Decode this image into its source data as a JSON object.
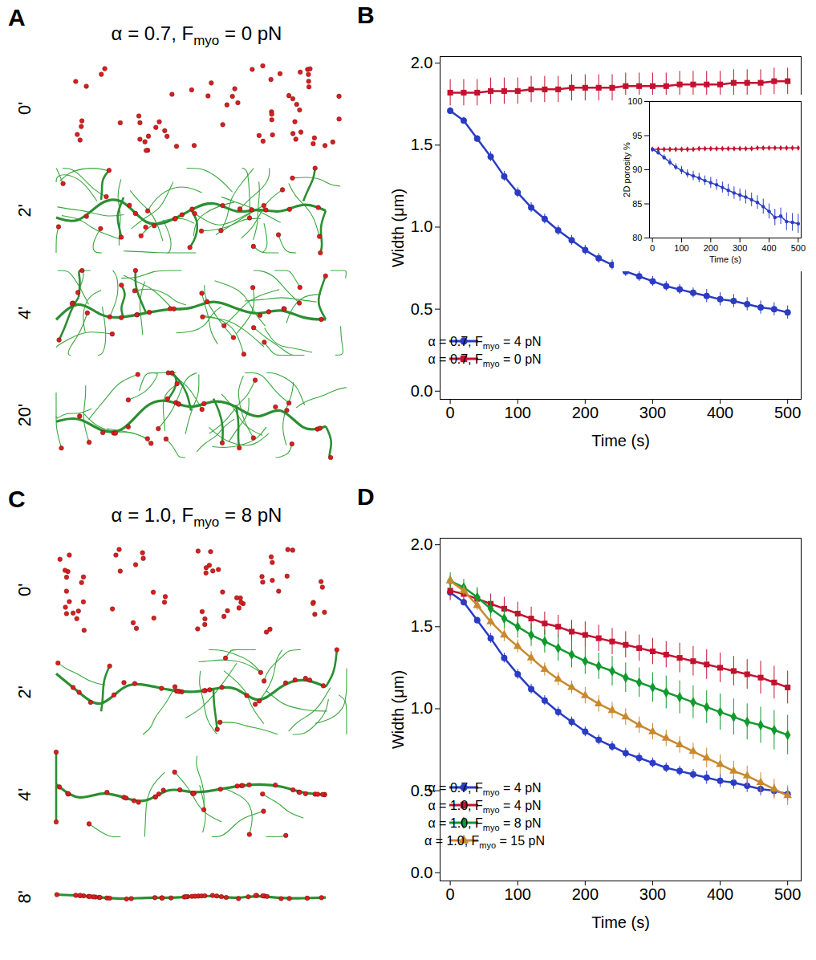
{
  "snapshots": [
    {
      "panel": "A",
      "title": "α = 0.7, Fmyo = 0 pN",
      "frames": [
        "0'",
        "2'",
        "4'",
        "20'"
      ]
    },
    {
      "panel": "C",
      "title": "α = 1.0, Fmyo = 8 pN",
      "frames": [
        "0'",
        "2'",
        "4'",
        "8'"
      ]
    }
  ],
  "chart_data": [
    {
      "panel": "B",
      "type": "line",
      "xlabel": "Time (s)",
      "ylabel": "Width (μm)",
      "x": [
        0,
        20,
        40,
        60,
        80,
        100,
        120,
        140,
        160,
        180,
        200,
        220,
        240,
        260,
        280,
        300,
        320,
        340,
        360,
        380,
        400,
        420,
        440,
        460,
        480,
        500
      ],
      "xlim": [
        -15,
        520
      ],
      "xticks": [
        0,
        100,
        200,
        300,
        400,
        500
      ],
      "ylim": [
        -0.05,
        2.04
      ],
      "yticks": [
        {
          "value": 0,
          "label": "0.0"
        },
        0.5,
        {
          "value": 1,
          "label": "1.0"
        },
        1.5,
        {
          "value": 2,
          "label": "2.0"
        }
      ],
      "legend": "lower left",
      "series": [
        {
          "name": "α = 0.7, Fmyo = 4 pN",
          "color": "#2a3cc4",
          "marker": "circle",
          "values": [
            1.71,
            1.65,
            1.54,
            1.43,
            1.31,
            1.21,
            1.12,
            1.05,
            0.98,
            0.92,
            0.86,
            0.81,
            0.77,
            0.73,
            0.7,
            0.67,
            0.64,
            0.62,
            0.6,
            0.58,
            0.56,
            0.55,
            0.53,
            0.51,
            0.5,
            0.48
          ],
          "errors": [
            0.02,
            0.02,
            0.02,
            0.03,
            0.03,
            0.03,
            0.03,
            0.03,
            0.03,
            0.03,
            0.03,
            0.03,
            0.03,
            0.03,
            0.03,
            0.03,
            0.03,
            0.03,
            0.03,
            0.04,
            0.04,
            0.04,
            0.04,
            0.04,
            0.04,
            0.04
          ]
        },
        {
          "name": "α = 0.7, Fmyo = 0 pN",
          "color": "#c4112f",
          "marker": "square",
          "values": [
            1.82,
            1.82,
            1.82,
            1.83,
            1.83,
            1.83,
            1.84,
            1.84,
            1.84,
            1.85,
            1.85,
            1.85,
            1.85,
            1.86,
            1.86,
            1.86,
            1.86,
            1.87,
            1.87,
            1.87,
            1.87,
            1.88,
            1.88,
            1.88,
            1.89,
            1.89
          ],
          "errors": [
            0.08,
            0.08,
            0.08,
            0.08,
            0.08,
            0.08,
            0.08,
            0.08,
            0.08,
            0.08,
            0.08,
            0.08,
            0.08,
            0.08,
            0.08,
            0.08,
            0.08,
            0.08,
            0.08,
            0.08,
            0.08,
            0.08,
            0.08,
            0.08,
            0.08,
            0.08
          ]
        }
      ],
      "inset": {
        "type": "line",
        "xlabel": "Time (s)",
        "ylabel": "2D porosity %",
        "x": [
          0,
          20,
          40,
          60,
          80,
          100,
          120,
          140,
          160,
          180,
          200,
          220,
          240,
          260,
          280,
          300,
          320,
          340,
          360,
          380,
          400,
          420,
          440,
          460,
          480,
          500
        ],
        "xlim": [
          -10,
          510
        ],
        "xticks": [
          0,
          100,
          200,
          300,
          400,
          500
        ],
        "ylim": [
          80,
          100
        ],
        "yticks": [
          80,
          85,
          90,
          95,
          100
        ],
        "series": [
          {
            "color": "#c4112f",
            "marker": "diamond",
            "values": [
              93.0,
              93.0,
              93.0,
              93.0,
              93.0,
              93.0,
              93.0,
              93.0,
              93.1,
              93.1,
              93.1,
              93.1,
              93.1,
              93.1,
              93.1,
              93.1,
              93.1,
              93.1,
              93.2,
              93.2,
              93.2,
              93.2,
              93.2,
              93.2,
              93.2,
              93.2
            ],
            "errors": [
              0.1,
              0.1,
              0.1,
              0.1,
              0.1,
              0.1,
              0.1,
              0.1,
              0.1,
              0.1,
              0.1,
              0.1,
              0.1,
              0.1,
              0.1,
              0.1,
              0.1,
              0.1,
              0.1,
              0.1,
              0.1,
              0.1,
              0.1,
              0.1,
              0.1,
              0.1
            ]
          },
          {
            "color": "#2a3cc4",
            "marker": "circle",
            "values": [
              93.0,
              92.5,
              91.8,
              91.1,
              90.4,
              89.9,
              89.4,
              89.1,
              88.8,
              88.4,
              88.1,
              87.8,
              87.4,
              87.0,
              86.6,
              86.3,
              86.0,
              85.6,
              85.2,
              84.6,
              83.9,
              83.0,
              83.2,
              82.4,
              82.3,
              82.1
            ],
            "errors": [
              0.2,
              0.3,
              0.4,
              0.5,
              0.5,
              0.6,
              0.6,
              0.7,
              0.7,
              0.7,
              0.8,
              0.8,
              0.8,
              0.9,
              0.9,
              0.9,
              1.0,
              1.0,
              1.0,
              1.1,
              1.1,
              1.2,
              1.2,
              1.3,
              1.3,
              1.4
            ]
          }
        ]
      }
    },
    {
      "panel": "D",
      "type": "line",
      "xlabel": "Time (s)",
      "ylabel": "Width (μm)",
      "x": [
        0,
        20,
        40,
        60,
        80,
        100,
        120,
        140,
        160,
        180,
        200,
        220,
        240,
        260,
        280,
        300,
        320,
        340,
        360,
        380,
        400,
        420,
        440,
        460,
        480,
        500
      ],
      "xlim": [
        -15,
        520
      ],
      "xticks": [
        0,
        100,
        200,
        300,
        400,
        500
      ],
      "ylim": [
        -0.05,
        2.04
      ],
      "yticks": [
        {
          "value": 0,
          "label": "0.0"
        },
        0.5,
        {
          "value": 1,
          "label": "1.0"
        },
        1.5,
        {
          "value": 2,
          "label": "2.0"
        }
      ],
      "legend": "lower left",
      "series": [
        {
          "name": "α = 0.7, Fmyo = 4 pN",
          "color": "#2a3cc4",
          "marker": "circle",
          "values": [
            1.71,
            1.65,
            1.54,
            1.43,
            1.31,
            1.21,
            1.12,
            1.05,
            0.98,
            0.92,
            0.86,
            0.81,
            0.77,
            0.73,
            0.7,
            0.67,
            0.64,
            0.62,
            0.6,
            0.58,
            0.56,
            0.55,
            0.53,
            0.51,
            0.5,
            0.48
          ],
          "errors": [
            0.02,
            0.02,
            0.02,
            0.03,
            0.03,
            0.03,
            0.03,
            0.03,
            0.03,
            0.03,
            0.03,
            0.03,
            0.03,
            0.03,
            0.03,
            0.03,
            0.03,
            0.03,
            0.03,
            0.04,
            0.04,
            0.04,
            0.04,
            0.04,
            0.04,
            0.04
          ]
        },
        {
          "name": "α = 1.0, Fmyo = 4 pN",
          "color": "#c4112f",
          "marker": "square",
          "values": [
            1.72,
            1.7,
            1.67,
            1.64,
            1.61,
            1.58,
            1.55,
            1.52,
            1.5,
            1.47,
            1.45,
            1.43,
            1.41,
            1.39,
            1.37,
            1.35,
            1.33,
            1.31,
            1.29,
            1.27,
            1.25,
            1.23,
            1.21,
            1.19,
            1.16,
            1.13
          ],
          "errors": [
            0.06,
            0.06,
            0.06,
            0.06,
            0.07,
            0.07,
            0.07,
            0.07,
            0.07,
            0.07,
            0.08,
            0.08,
            0.08,
            0.08,
            0.08,
            0.08,
            0.08,
            0.09,
            0.09,
            0.09,
            0.09,
            0.09,
            0.09,
            0.1,
            0.1,
            0.1
          ]
        },
        {
          "name": "α = 1.0, Fmyo = 8 pN",
          "color": "#119a2e",
          "marker": "diamond",
          "values": [
            1.78,
            1.74,
            1.68,
            1.61,
            1.55,
            1.5,
            1.45,
            1.41,
            1.37,
            1.33,
            1.29,
            1.26,
            1.23,
            1.19,
            1.16,
            1.13,
            1.1,
            1.07,
            1.04,
            1.01,
            0.98,
            0.95,
            0.92,
            0.9,
            0.87,
            0.84
          ],
          "errors": [
            0.05,
            0.05,
            0.06,
            0.06,
            0.06,
            0.07,
            0.07,
            0.07,
            0.08,
            0.08,
            0.08,
            0.08,
            0.09,
            0.09,
            0.09,
            0.09,
            0.1,
            0.1,
            0.1,
            0.1,
            0.11,
            0.11,
            0.11,
            0.11,
            0.12,
            0.12
          ]
        },
        {
          "name": "α = 1.0, Fmyo = 15 pN",
          "color": "#c9892f",
          "marker": "triangle",
          "values": [
            1.78,
            1.72,
            1.63,
            1.53,
            1.45,
            1.38,
            1.31,
            1.24,
            1.18,
            1.13,
            1.08,
            1.03,
            0.99,
            0.95,
            0.9,
            0.86,
            0.82,
            0.78,
            0.74,
            0.7,
            0.66,
            0.62,
            0.59,
            0.55,
            0.51,
            0.47
          ],
          "errors": [
            0.03,
            0.03,
            0.03,
            0.03,
            0.04,
            0.04,
            0.04,
            0.04,
            0.04,
            0.04,
            0.05,
            0.05,
            0.05,
            0.05,
            0.05,
            0.05,
            0.05,
            0.05,
            0.05,
            0.06,
            0.06,
            0.06,
            0.06,
            0.06,
            0.06,
            0.06
          ]
        }
      ]
    }
  ]
}
